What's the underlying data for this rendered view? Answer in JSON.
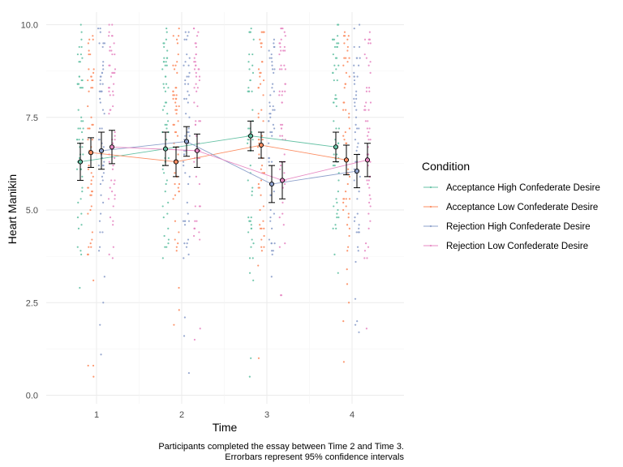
{
  "chart_data": {
    "type": "scatter",
    "subtype": "jittered points with mean lines and 95% CI error bars",
    "xlabel": "Time",
    "ylabel": "Heart Manikin",
    "x_categories": [
      "1",
      "2",
      "3",
      "4"
    ],
    "ylim": [
      0,
      10
    ],
    "yticks": [
      "0.0",
      "2.5",
      "5.0",
      "7.5",
      "10.0"
    ],
    "grid": true,
    "legend": {
      "title": "Condition",
      "position": "right"
    },
    "caption": [
      "Participants completed the essay between Time 2 and Time 3.",
      "Errorbars represent 95% confidence intervals"
    ],
    "series": [
      {
        "name": "Acceptance High Confederate Desire",
        "color": "#66c2a5",
        "means": [
          6.3,
          6.65,
          7.0,
          6.7
        ],
        "ci_low": [
          5.8,
          6.2,
          6.6,
          6.3
        ],
        "ci_high": [
          6.8,
          7.1,
          7.4,
          7.1
        ]
      },
      {
        "name": "Acceptance Low Confederate Desire",
        "color": "#fc8d62",
        "means": [
          6.55,
          6.3,
          6.75,
          6.35
        ],
        "ci_low": [
          6.15,
          5.9,
          6.4,
          5.95
        ],
        "ci_high": [
          6.95,
          6.7,
          7.1,
          6.75
        ]
      },
      {
        "name": "Rejection High Confederate Desire",
        "color": "#8da0cb",
        "means": [
          6.6,
          6.85,
          5.7,
          6.05
        ],
        "ci_low": [
          6.1,
          6.45,
          5.2,
          5.6
        ],
        "ci_high": [
          7.1,
          7.25,
          6.2,
          6.5
        ]
      },
      {
        "name": "Rejection Low Confederate Desire",
        "color": "#e78ac3",
        "means": [
          6.7,
          6.6,
          5.8,
          6.35
        ],
        "ci_low": [
          6.25,
          6.15,
          5.3,
          5.9
        ],
        "ci_high": [
          7.15,
          7.05,
          6.3,
          6.8
        ]
      }
    ],
    "raw_points_range": [
      0.2,
      10.0
    ]
  }
}
